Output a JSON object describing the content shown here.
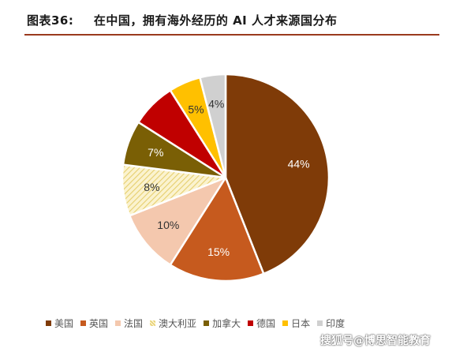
{
  "header": {
    "figure_number": "图表36:",
    "title": "在中国，拥有海外经历的 AI 人才来源国分布"
  },
  "chart_data": {
    "type": "pie",
    "title": "在中国，拥有海外经历的 AI 人才来源国分布",
    "slices": [
      {
        "name": "美国",
        "value": 44,
        "label": "44%",
        "color": "#7f3b08",
        "label_color": "#ffffff"
      },
      {
        "name": "英国",
        "value": 15,
        "label": "15%",
        "color": "#c65a1e",
        "label_color": "#ffffff"
      },
      {
        "name": "法国",
        "value": 10,
        "label": "10%",
        "color": "#f4c8ae",
        "label_color": "#333333"
      },
      {
        "name": "澳大利亚",
        "value": 8,
        "label": "8%",
        "color": "#f3e3a3",
        "label_color": "#333333",
        "pattern": "hatch"
      },
      {
        "name": "加拿大",
        "value": 7,
        "label": "7%",
        "color": "#7a5f05",
        "label_color": "#ffffff"
      },
      {
        "name": "德国",
        "value": 7,
        "label": "7%",
        "color": "#c00000",
        "label_color": "#c00000"
      },
      {
        "name": "日本",
        "value": 5,
        "label": "5%",
        "color": "#ffc000",
        "label_color": "#333333"
      },
      {
        "name": "印度",
        "value": 4,
        "label": "4%",
        "color": "#d0d0d0",
        "label_color": "#333333"
      }
    ],
    "legend_position": "bottom",
    "start_angle_deg": 0,
    "direction": "clockwise"
  },
  "watermark": "搜狐号@博思智能教育"
}
